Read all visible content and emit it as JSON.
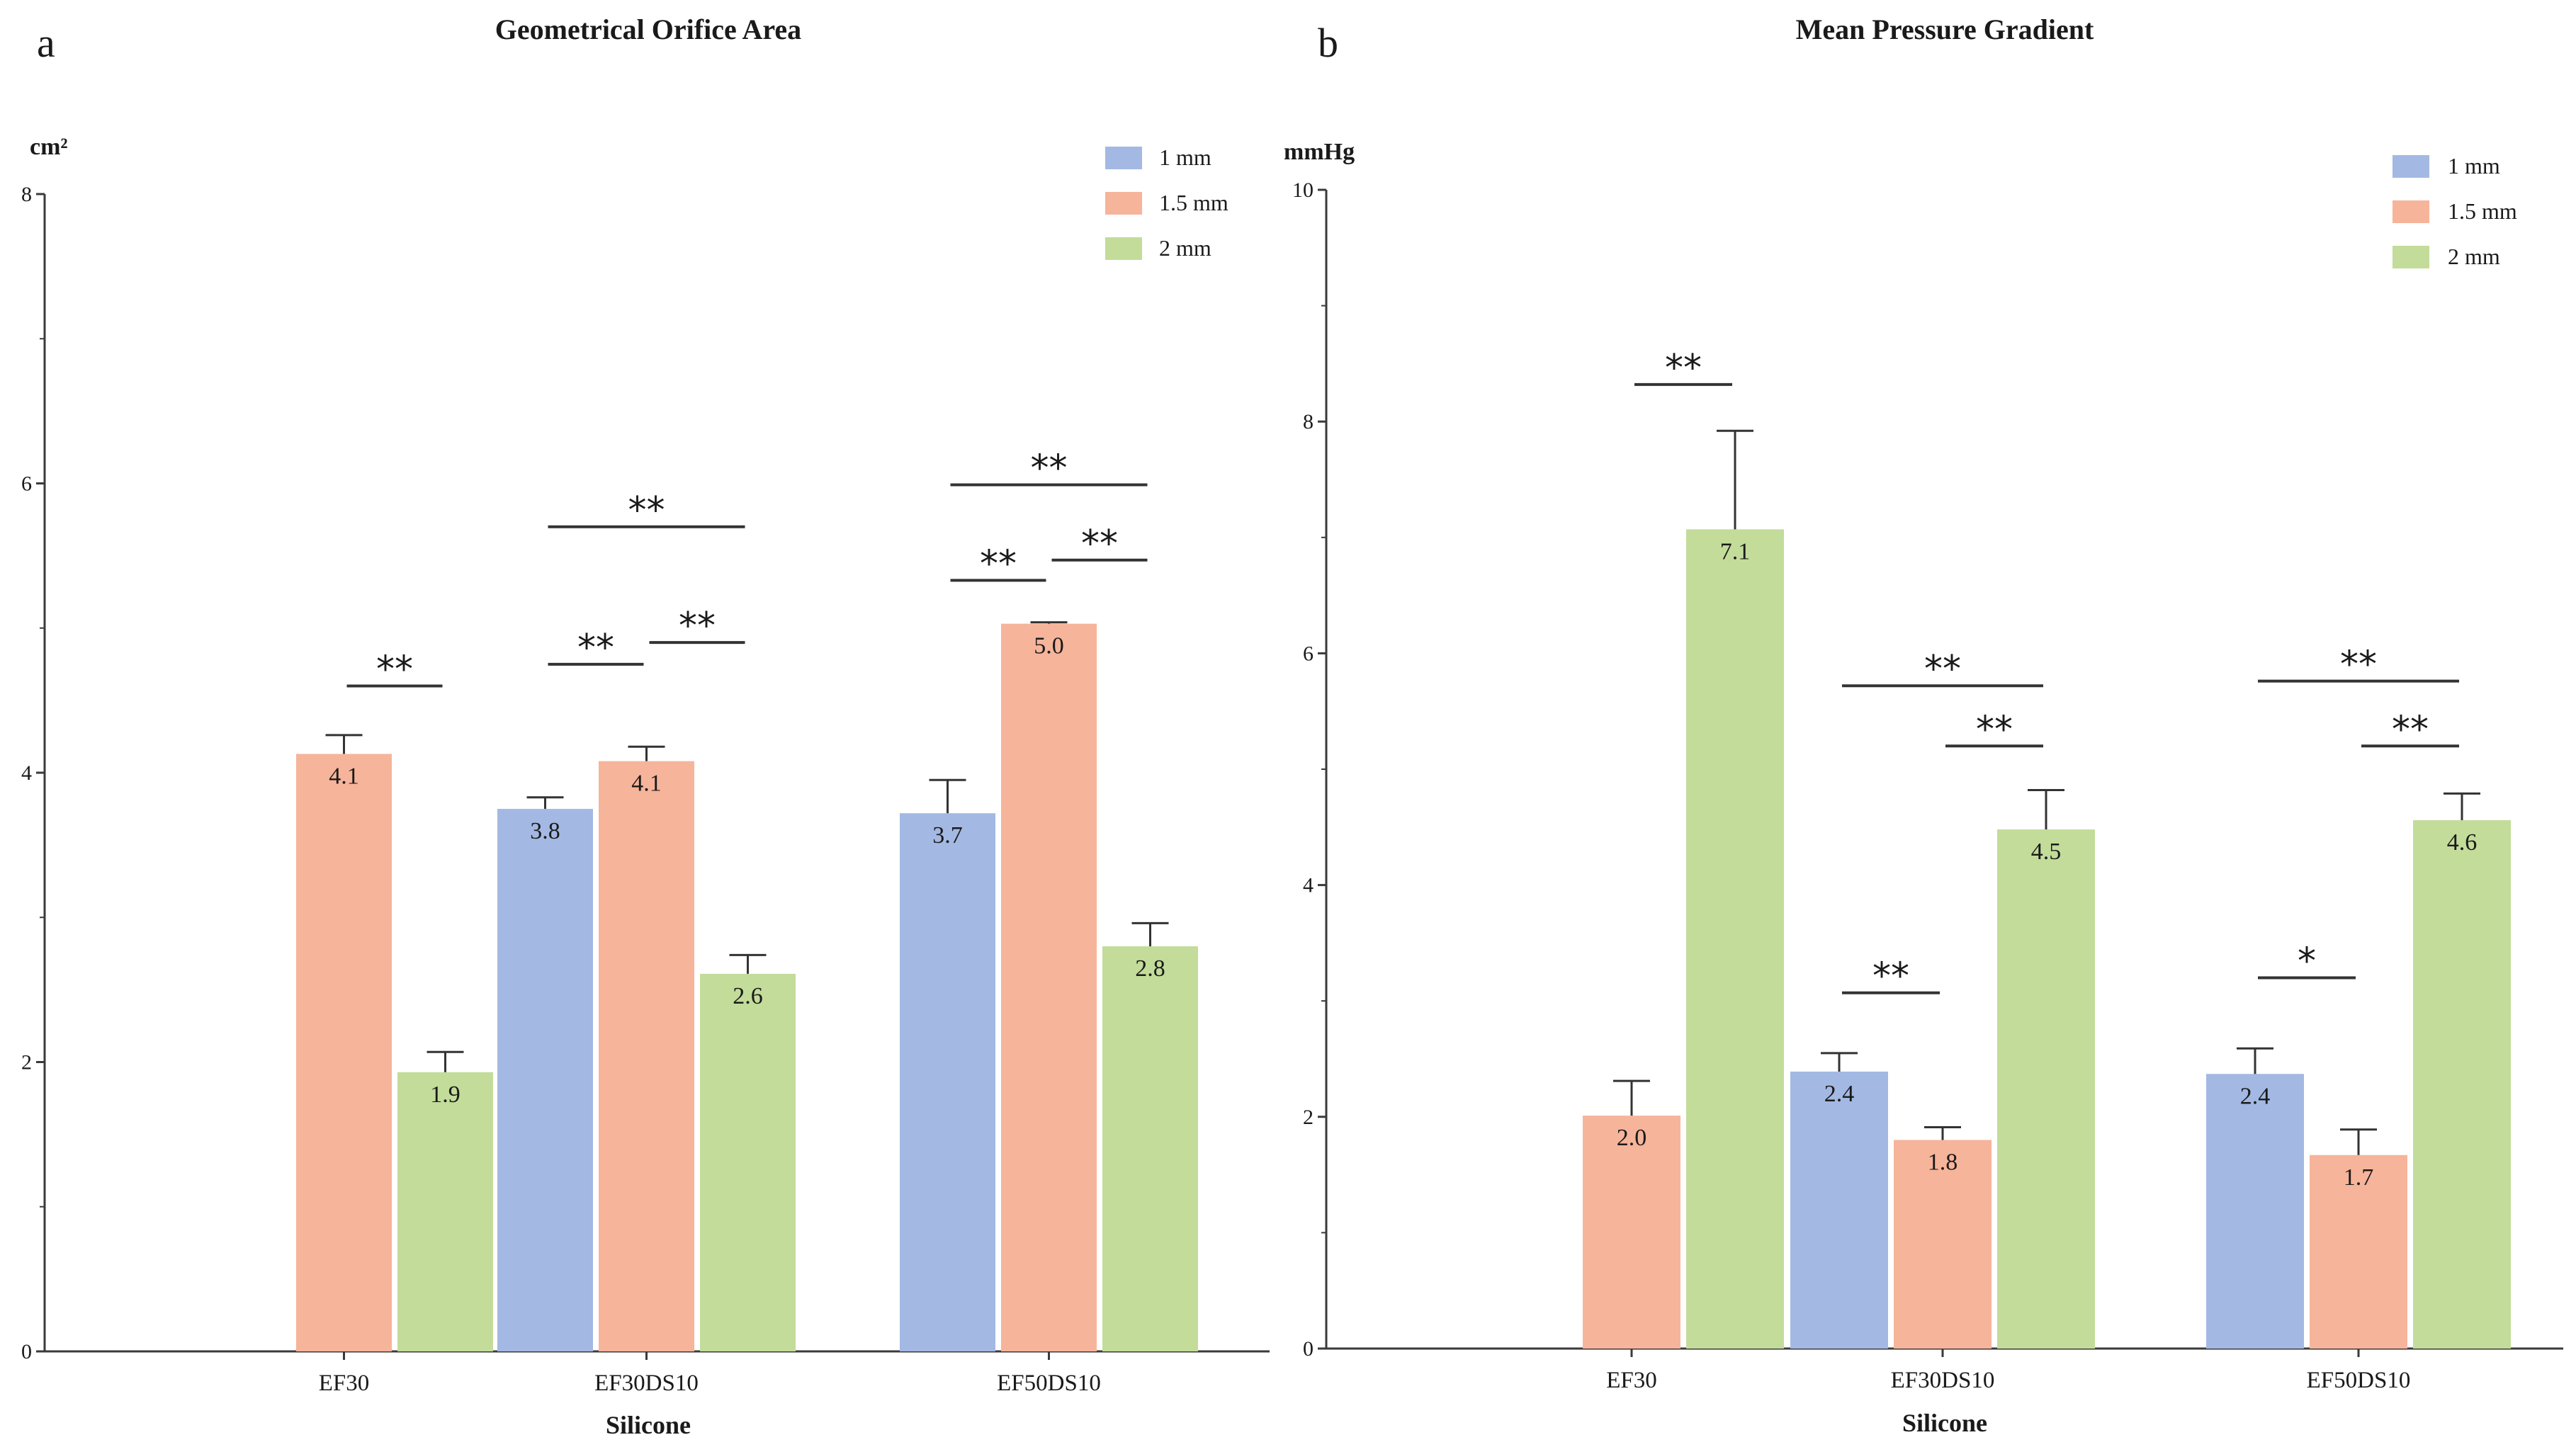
{
  "colors": {
    "1 mm": "#a3b9e3",
    "1.5 mm": "#f6b49a",
    "2 mm": "#c3dc9a",
    "axis": "#3a3a3a"
  },
  "chart_data": [
    {
      "type": "bar",
      "panel_letter": "a",
      "title": "Geometrical Orifice Area",
      "unit": "cm²",
      "xlabel": "Silicone",
      "ylabel": "cm²",
      "ylim": [
        0,
        8
      ],
      "yticks": [
        "0",
        "2",
        "4",
        "6",
        "8"
      ],
      "categories": [
        "EF30",
        "EF30DS10",
        "EF50DS10"
      ],
      "series": [
        {
          "name": "1 mm",
          "values": [
            null,
            3.75,
            3.72
          ],
          "errors": [
            null,
            0.08,
            0.23
          ],
          "labels": [
            "",
            "3.8",
            "3.7"
          ]
        },
        {
          "name": "1.5 mm",
          "values": [
            4.13,
            4.08,
            5.03
          ],
          "errors": [
            0.13,
            0.1,
            0.01
          ],
          "labels": [
            "4.1",
            "4.1",
            "5.0"
          ]
        },
        {
          "name": "2 mm",
          "values": [
            1.93,
            2.61,
            2.8
          ],
          "errors": [
            0.14,
            0.13,
            0.16
          ],
          "labels": [
            "1.9",
            "2.6",
            "2.8"
          ]
        }
      ],
      "significance": [
        {
          "cat": 0,
          "from": 1,
          "to": 2,
          "y": 4.6,
          "stars": "**"
        },
        {
          "cat": 1,
          "from": 0,
          "to": 1,
          "y": 4.75,
          "stars": "**"
        },
        {
          "cat": 1,
          "from": 1,
          "to": 2,
          "y": 4.9,
          "stars": "**"
        },
        {
          "cat": 1,
          "from": 0,
          "to": 2,
          "y": 5.7,
          "stars": "**"
        },
        {
          "cat": 2,
          "from": 0,
          "to": 1,
          "y": 5.33,
          "stars": "**"
        },
        {
          "cat": 2,
          "from": 1,
          "to": 2,
          "y": 5.47,
          "stars": "**"
        },
        {
          "cat": 2,
          "from": 0,
          "to": 2,
          "y": 5.99,
          "stars": "**"
        }
      ],
      "legend": [
        "1 mm",
        "1.5 mm",
        "2 mm"
      ],
      "legend_position": "top-right"
    },
    {
      "type": "bar",
      "panel_letter": "b",
      "title": "Mean Pressure Gradient",
      "unit": "mmHg",
      "xlabel": "Silicone",
      "ylabel": "mmHg",
      "ylim": [
        0,
        10
      ],
      "yticks": [
        "0",
        "2",
        "4",
        "6",
        "8",
        "10"
      ],
      "categories": [
        "EF30",
        "EF30DS10",
        "EF50DS10"
      ],
      "series": [
        {
          "name": "1 mm",
          "values": [
            null,
            2.39,
            2.37
          ],
          "errors": [
            null,
            0.16,
            0.22
          ],
          "labels": [
            "",
            "2.4",
            "2.4"
          ]
        },
        {
          "name": "1.5 mm",
          "values": [
            2.01,
            1.8,
            1.67
          ],
          "errors": [
            0.3,
            0.11,
            0.22
          ],
          "labels": [
            "2.0",
            "1.8",
            "1.7"
          ]
        },
        {
          "name": "2 mm",
          "values": [
            7.07,
            4.48,
            4.56
          ],
          "errors": [
            0.85,
            0.34,
            0.23
          ],
          "labels": [
            "7.1",
            "4.5",
            "4.6"
          ]
        }
      ],
      "significance": [
        {
          "cat": 0,
          "from": 1,
          "to": 2,
          "y": 8.32,
          "stars": "**"
        },
        {
          "cat": 1,
          "from": 0,
          "to": 1,
          "y": 3.07,
          "stars": "**"
        },
        {
          "cat": 1,
          "from": 1,
          "to": 2,
          "y": 5.2,
          "stars": "**"
        },
        {
          "cat": 1,
          "from": 0,
          "to": 2,
          "y": 5.72,
          "stars": "**"
        },
        {
          "cat": 2,
          "from": 0,
          "to": 1,
          "y": 3.2,
          "stars": "*"
        },
        {
          "cat": 2,
          "from": 1,
          "to": 2,
          "y": 5.2,
          "stars": "**"
        },
        {
          "cat": 2,
          "from": 0,
          "to": 2,
          "y": 5.76,
          "stars": "**"
        }
      ],
      "legend": [
        "1 mm",
        "1.5 mm",
        "2 mm"
      ],
      "legend_position": "top-right"
    }
  ]
}
